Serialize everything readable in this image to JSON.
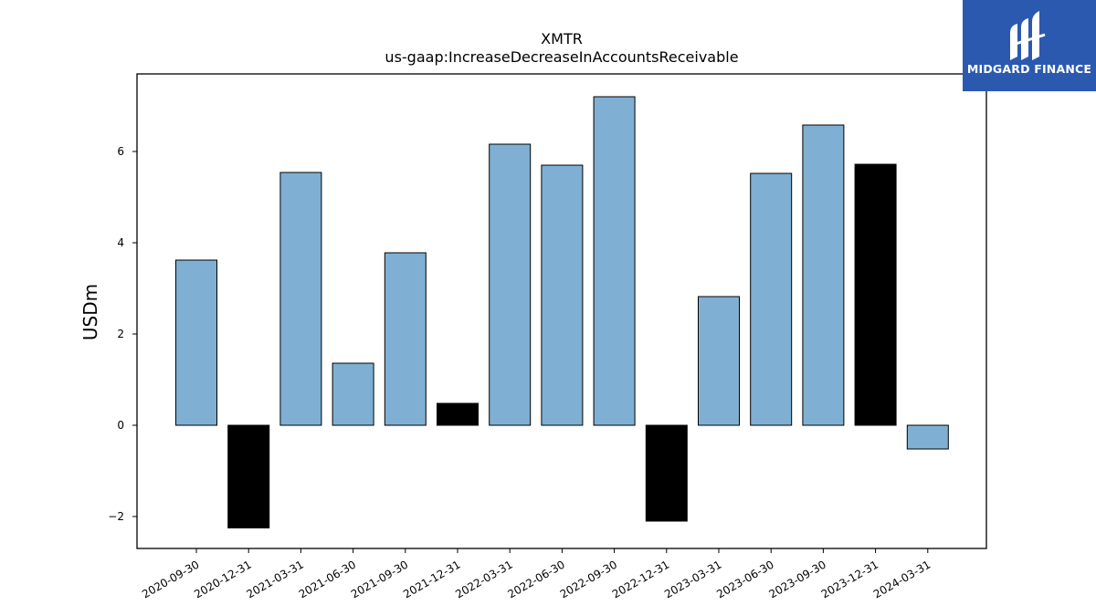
{
  "chart_data": {
    "type": "bar",
    "title": "XMTR",
    "subtitle": "us-gaap:IncreaseDecreaseInAccountsReceivable",
    "xlabel": "",
    "ylabel": "USDm",
    "ylim": [
      -2.7,
      7.7
    ],
    "yticks": [
      -2,
      0,
      2,
      4,
      6
    ],
    "ytick_labels": [
      "−2",
      "0",
      "2",
      "4",
      "6"
    ],
    "categories": [
      "2020-09-30",
      "2020-12-31",
      "2021-03-31",
      "2021-06-30",
      "2021-09-30",
      "2021-12-31",
      "2022-03-31",
      "2022-06-30",
      "2022-09-30",
      "2022-12-31",
      "2023-03-31",
      "2023-06-30",
      "2023-09-30",
      "2023-12-31",
      "2024-03-31"
    ],
    "values": [
      3.62,
      -2.25,
      5.54,
      1.36,
      3.78,
      0.48,
      6.16,
      5.7,
      7.2,
      -2.1,
      2.82,
      5.52,
      6.58,
      5.72,
      -0.52
    ],
    "bar_colors": [
      "#7fb0d3",
      "#000000",
      "#7fb0d3",
      "#7fb0d3",
      "#7fb0d3",
      "#000000",
      "#7fb0d3",
      "#7fb0d3",
      "#7fb0d3",
      "#000000",
      "#7fb0d3",
      "#7fb0d3",
      "#7fb0d3",
      "#000000",
      "#7fb0d3"
    ],
    "grid": false
  },
  "logo": {
    "text": "MIDGARD FINANCE",
    "background": "#2b59b0"
  }
}
